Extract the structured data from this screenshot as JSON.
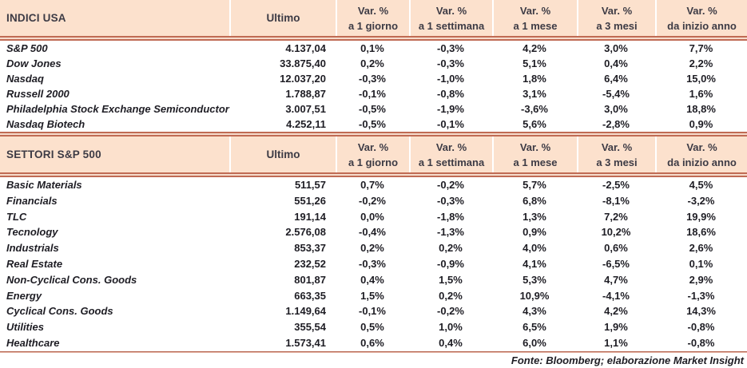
{
  "colors": {
    "header_bg": "#fce1cd",
    "rule": "#c06b54",
    "rule_gap": "#f6dccc",
    "header_text": "#3d3b45",
    "body_text": "#1e1d24",
    "column_separator": "#ffffff"
  },
  "chart_data": {
    "type": "table",
    "var_label": "Var. %",
    "periods": [
      "a 1 giorno",
      "a 1 settimana",
      "a 1 mese",
      "a 3 mesi",
      "da inizio anno"
    ],
    "sections": [
      {
        "title": "INDICI USA",
        "ultimo_label": "Ultimo",
        "rows": [
          {
            "name": "S&P 500",
            "values": [
              "4.137,04",
              "0,1%",
              "-0,3%",
              "4,2%",
              "3,0%",
              "7,7%"
            ]
          },
          {
            "name": "Dow Jones",
            "values": [
              "33.875,40",
              "0,2%",
              "-0,3%",
              "5,1%",
              "0,4%",
              "2,2%"
            ]
          },
          {
            "name": "Nasdaq",
            "values": [
              "12.037,20",
              "-0,3%",
              "-1,0%",
              "1,8%",
              "6,4%",
              "15,0%"
            ]
          },
          {
            "name": "Russell 2000",
            "values": [
              "1.788,87",
              "-0,1%",
              "-0,8%",
              "3,1%",
              "-5,4%",
              "1,6%"
            ]
          },
          {
            "name": "Philadelphia Stock Exchange Semiconductor",
            "values": [
              "3.007,51",
              "-0,5%",
              "-1,9%",
              "-3,6%",
              "3,0%",
              "18,8%"
            ]
          },
          {
            "name": "Nasdaq Biotech",
            "values": [
              "4.252,11",
              "-0,5%",
              "-0,1%",
              "5,6%",
              "-2,8%",
              "0,9%"
            ]
          }
        ]
      },
      {
        "title": "SETTORI S&P 500",
        "ultimo_label": "Ultimo",
        "rows": [
          {
            "name": "Basic Materials",
            "values": [
              "511,57",
              "0,7%",
              "-0,2%",
              "5,7%",
              "-2,5%",
              "4,5%"
            ]
          },
          {
            "name": "Financials",
            "values": [
              "551,26",
              "-0,2%",
              "-0,3%",
              "6,8%",
              "-8,1%",
              "-3,2%"
            ]
          },
          {
            "name": "TLC",
            "values": [
              "191,14",
              "0,0%",
              "-1,8%",
              "1,3%",
              "7,2%",
              "19,9%"
            ]
          },
          {
            "name": "Tecnology",
            "values": [
              "2.576,08",
              "-0,4%",
              "-1,3%",
              "0,9%",
              "10,2%",
              "18,6%"
            ]
          },
          {
            "name": "Industrials",
            "values": [
              "853,37",
              "0,2%",
              "0,2%",
              "4,0%",
              "0,6%",
              "2,6%"
            ]
          },
          {
            "name": "Real Estate",
            "values": [
              "232,52",
              "-0,3%",
              "-0,9%",
              "4,1%",
              "-6,5%",
              "0,1%"
            ]
          },
          {
            "name": "Non-Cyclical Cons. Goods",
            "values": [
              "801,87",
              "0,4%",
              "1,5%",
              "5,3%",
              "4,7%",
              "2,9%"
            ]
          },
          {
            "name": "Energy",
            "values": [
              "663,35",
              "1,5%",
              "0,2%",
              "10,9%",
              "-4,1%",
              "-1,3%"
            ]
          },
          {
            "name": "Cyclical Cons. Goods",
            "values": [
              "1.149,64",
              "-0,1%",
              "-0,2%",
              "4,3%",
              "4,2%",
              "14,3%"
            ]
          },
          {
            "name": "Utilities",
            "values": [
              "355,54",
              "0,5%",
              "1,0%",
              "6,5%",
              "1,9%",
              "-0,8%"
            ]
          },
          {
            "name": "Healthcare",
            "values": [
              "1.573,41",
              "0,6%",
              "0,4%",
              "6,0%",
              "1,1%",
              "-0,8%"
            ]
          }
        ]
      }
    ],
    "footer": "Fonte: Bloomberg; elaborazione Market Insight"
  }
}
